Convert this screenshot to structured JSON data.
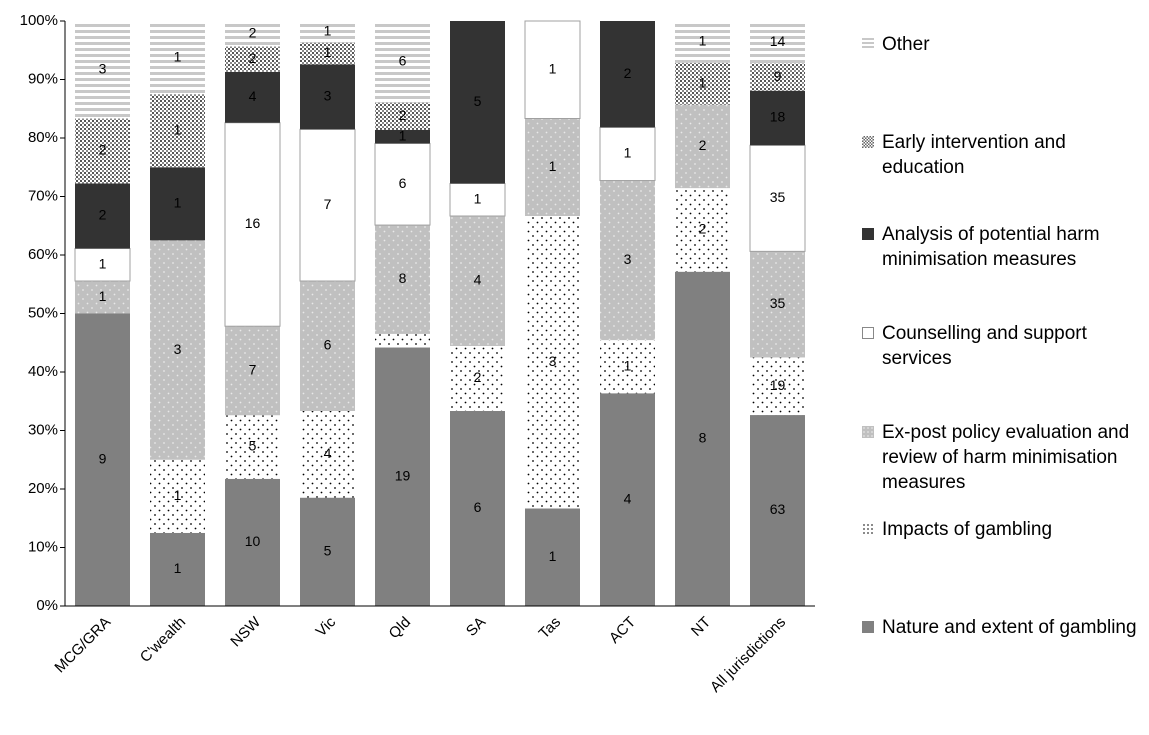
{
  "chart_data": {
    "type": "bar",
    "stacking": "percent",
    "categories": [
      "MCG/GRA",
      "C'wealth",
      "NSW",
      "Vic",
      "Qld",
      "SA",
      "Tas",
      "ACT",
      "NT",
      "All jurisdictions"
    ],
    "series": [
      {
        "name": "Nature and extent of gambling",
        "color": "#808080",
        "pattern": "solid",
        "values": [
          9,
          1,
          10,
          5,
          19,
          6,
          1,
          4,
          8,
          63
        ]
      },
      {
        "name": "Impacts of gambling",
        "color": "#ffffff",
        "pattern": "dots",
        "values": [
          0,
          1,
          5,
          4,
          1,
          2,
          3,
          1,
          2,
          19
        ],
        "value_labels": [
          null,
          "1",
          "5",
          "4",
          null,
          "2",
          "3",
          "1",
          "2",
          "19"
        ]
      },
      {
        "name": "Ex-post policy evaluation and review of harm minimisation measures",
        "color": "#c0c0c0",
        "pattern": "light-dots",
        "values": [
          1,
          3,
          7,
          6,
          8,
          4,
          1,
          3,
          2,
          35
        ]
      },
      {
        "name": "Counselling and support services",
        "color": "#ffffff",
        "pattern": "solid",
        "values": [
          1,
          0,
          16,
          7,
          6,
          1,
          1,
          1,
          0,
          35
        ]
      },
      {
        "name": "Analysis of potential harm minimisation measures",
        "color": "#333333",
        "pattern": "solid",
        "values": [
          2,
          1,
          4,
          3,
          1,
          5,
          0,
          2,
          0,
          18
        ]
      },
      {
        "name": "Early intervention and education",
        "color": "#a6a6a6",
        "pattern": "dense-dots",
        "values": [
          2,
          1,
          2,
          1,
          2,
          0,
          0,
          0,
          1,
          9
        ]
      },
      {
        "name": "Other",
        "color": "#c8c8c8",
        "pattern": "lines",
        "values": [
          3,
          1,
          2,
          1,
          6,
          0,
          0,
          0,
          1,
          14
        ]
      }
    ],
    "ylim": [
      0,
      100
    ],
    "yticks": [
      {
        "value": 0,
        "label": "0%"
      },
      {
        "value": 10,
        "label": "10%"
      },
      {
        "value": 20,
        "label": "20%"
      },
      {
        "value": 30,
        "label": "30%"
      },
      {
        "value": 40,
        "label": "40%"
      },
      {
        "value": 50,
        "label": "50%"
      },
      {
        "value": 60,
        "label": "60%"
      },
      {
        "value": 70,
        "label": "70%"
      },
      {
        "value": 80,
        "label": "80%"
      },
      {
        "value": 90,
        "label": "90%"
      },
      {
        "value": 100,
        "label": "100%"
      }
    ],
    "legend": "right"
  }
}
